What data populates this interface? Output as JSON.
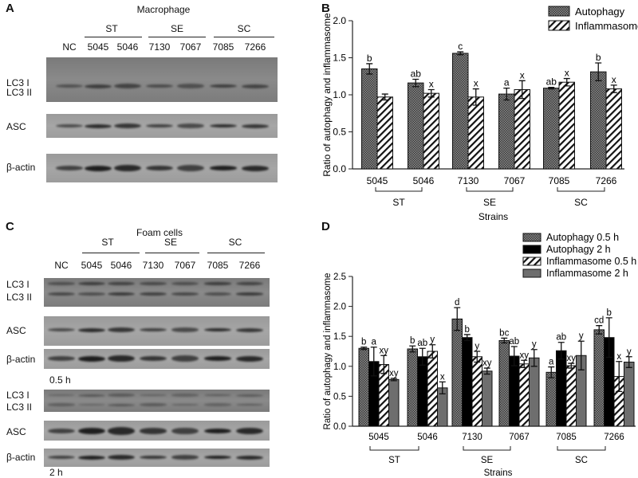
{
  "panel_a": {
    "label": "A",
    "title": "Macrophage",
    "groups": [
      "ST",
      "SE",
      "SC"
    ],
    "lanes": [
      "NC",
      "5045",
      "5046",
      "7130",
      "7067",
      "7085",
      "7266"
    ],
    "rows": {
      "lc3_1": "LC3 I",
      "lc3_2": "LC3 II",
      "asc": "ASC",
      "actin": "β-actin"
    }
  },
  "panel_b": {
    "label": "B"
  },
  "panel_c": {
    "label": "C",
    "title": "Foam cells",
    "groups": [
      "ST",
      "SE",
      "SC"
    ],
    "lanes": [
      "NC",
      "5045",
      "5046",
      "7130",
      "7067",
      "7085",
      "7266"
    ],
    "rows": {
      "lc3_1": "LC3 I",
      "lc3_2": "LC3 II",
      "asc": "ASC",
      "actin": "β-actin"
    },
    "time_labels": [
      "0.5 h",
      "2 h"
    ]
  },
  "panel_d": {
    "label": "D"
  },
  "chart_data": [
    {
      "type": "bar",
      "panel": "B",
      "title": "",
      "xlabel": "Strains",
      "ylabel": "Ratio of autophagy and inflammasome",
      "ylim": [
        0,
        2.0
      ],
      "yticks": [
        "0.0",
        "0.5",
        "1.0",
        "1.5",
        "2.0"
      ],
      "categories": [
        "5045",
        "5046",
        "7130",
        "7067",
        "7085",
        "7266"
      ],
      "groups": [
        {
          "name": "ST",
          "members": [
            0,
            1
          ]
        },
        {
          "name": "SE",
          "members": [
            2,
            3
          ]
        },
        {
          "name": "SC",
          "members": [
            4,
            5
          ]
        }
      ],
      "legend": "top-right",
      "series": [
        {
          "name": "Autophagy",
          "pattern": "checker",
          "color": "#555555",
          "values": [
            1.35,
            1.16,
            1.56,
            1.01,
            1.09,
            1.31
          ],
          "errors": [
            0.07,
            0.05,
            0.02,
            0.08,
            0.01,
            0.12
          ],
          "letters": [
            "b",
            "ab",
            "c",
            "a",
            "ab",
            "b"
          ]
        },
        {
          "name": "Inflammasome",
          "pattern": "hatch",
          "color": "#ffffff",
          "values": [
            0.97,
            1.02,
            0.97,
            1.07,
            1.17,
            1.08
          ],
          "errors": [
            0.04,
            0.05,
            0.11,
            0.12,
            0.05,
            0.05
          ],
          "letters": [
            "",
            "x",
            "x",
            "x",
            "x",
            "x"
          ]
        }
      ]
    },
    {
      "type": "bar",
      "panel": "D",
      "title": "",
      "xlabel": "Strains",
      "ylabel": "Ratio of autophagy and inflammasome",
      "ylim": [
        0,
        2.5
      ],
      "yticks": [
        "0.0",
        "0.5",
        "1.0",
        "1.5",
        "2.0",
        "2.5"
      ],
      "categories": [
        "5045",
        "5046",
        "7130",
        "7067",
        "7085",
        "7266"
      ],
      "groups": [
        {
          "name": "ST",
          "members": [
            0,
            1
          ]
        },
        {
          "name": "SE",
          "members": [
            2,
            3
          ]
        },
        {
          "name": "SC",
          "members": [
            4,
            5
          ]
        }
      ],
      "legend": "top-right",
      "series": [
        {
          "name": "Autophagy 0.5 h",
          "pattern": "checker",
          "color": "#555555",
          "values": [
            1.3,
            1.29,
            1.79,
            1.43,
            0.9,
            1.61
          ],
          "errors": [
            0.02,
            0.05,
            0.19,
            0.04,
            0.09,
            0.07
          ],
          "letters": [
            "b",
            "b",
            "d",
            "bc",
            "a",
            "cd"
          ]
        },
        {
          "name": "Autophagy 2 h",
          "pattern": "solid",
          "color": "#000000",
          "values": [
            1.08,
            1.16,
            1.48,
            1.17,
            1.26,
            1.48
          ],
          "errors": [
            0.24,
            0.14,
            0.05,
            0.16,
            0.14,
            0.33
          ],
          "letters": [
            "a",
            "ab",
            "b",
            "ab",
            "ab",
            "b"
          ]
        },
        {
          "name": "Inflammasome 0.5 h",
          "pattern": "hatch",
          "color": "#ffffff",
          "values": [
            1.03,
            1.25,
            1.16,
            1.04,
            1.01,
            0.83
          ],
          "errors": [
            0.15,
            0.11,
            0.09,
            0.06,
            0.04,
            0.25
          ],
          "letters": [
            "xy",
            "y",
            "y",
            "xy",
            "xy",
            "x"
          ]
        },
        {
          "name": "Inflammasome 2 h",
          "pattern": "solid",
          "color": "#6e6e6e",
          "values": [
            0.78,
            0.64,
            0.92,
            1.14,
            1.18,
            1.07
          ],
          "errors": [
            0.02,
            0.1,
            0.05,
            0.14,
            0.24,
            0.09
          ],
          "letters": [
            "xy",
            "x",
            "xy",
            "y",
            "y",
            "y"
          ]
        }
      ]
    }
  ]
}
